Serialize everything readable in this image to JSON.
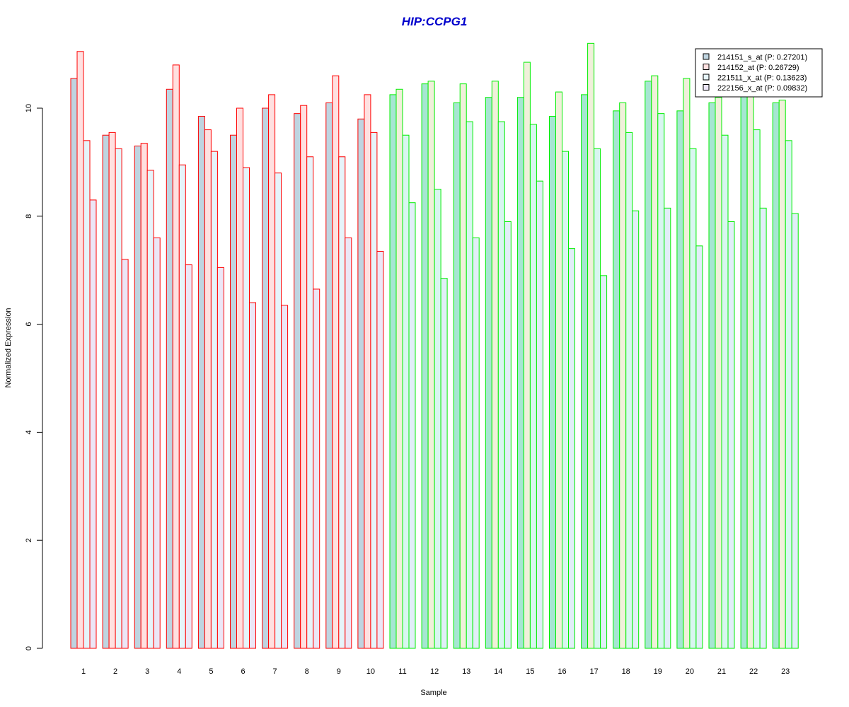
{
  "chart_data": {
    "type": "bar",
    "title": "HIP:CCPG1",
    "xlabel": "Sample",
    "ylabel": "Normalized Expression",
    "ylim": [
      0,
      11.2
    ],
    "yticks": [
      0,
      2,
      4,
      6,
      8,
      10
    ],
    "grid": false,
    "legend_position": "top-right",
    "categories": [
      "1",
      "2",
      "3",
      "4",
      "5",
      "6",
      "7",
      "8",
      "9",
      "10",
      "11",
      "12",
      "13",
      "14",
      "15",
      "16",
      "17",
      "18",
      "19",
      "20",
      "21",
      "22",
      "23"
    ],
    "group_colors": {
      "outline_group_a": "#ff0000",
      "outline_group_b": "#00ee00",
      "group_a_samples": 10
    },
    "series": [
      {
        "name": "214151_s_at (P: 0.27201)",
        "fill_a": "#bfd4e0",
        "fill_b": "#a6e6d2",
        "values": [
          10.55,
          9.5,
          9.3,
          10.35,
          9.85,
          9.5,
          10.0,
          9.9,
          10.1,
          9.8,
          10.25,
          10.45,
          10.1,
          10.2,
          10.2,
          9.85,
          10.25,
          9.95,
          10.5,
          9.95,
          10.1,
          10.3,
          10.1
        ]
      },
      {
        "name": "214152_at (P: 0.26729)",
        "fill_a": "#ffe0e0",
        "fill_b": "#f0f0da",
        "values": [
          11.05,
          9.55,
          9.35,
          10.8,
          9.6,
          10.0,
          10.25,
          10.05,
          10.6,
          10.25,
          10.35,
          10.5,
          10.45,
          10.5,
          10.85,
          10.3,
          11.2,
          10.1,
          10.6,
          10.55,
          10.2,
          10.3,
          10.15
        ]
      },
      {
        "name": "221511_x_at (P: 0.13623)",
        "fill_a": "#e6f4fa",
        "fill_b": "#d8f6f0",
        "values": [
          9.4,
          9.25,
          8.85,
          8.95,
          9.2,
          8.9,
          8.8,
          9.1,
          9.1,
          9.55,
          9.5,
          8.5,
          9.75,
          9.75,
          9.7,
          9.2,
          9.25,
          9.55,
          9.9,
          9.25,
          9.5,
          9.6,
          9.4
        ]
      },
      {
        "name": "222156_x_at (P: 0.09832)",
        "fill_a": "#ece6f6",
        "fill_b": "#e1eef8",
        "values": [
          8.3,
          7.2,
          7.6,
          7.1,
          7.05,
          6.4,
          6.35,
          6.65,
          7.6,
          7.35,
          8.25,
          6.85,
          7.6,
          7.9,
          8.65,
          7.4,
          6.9,
          8.1,
          8.15,
          7.45,
          7.9,
          8.15,
          8.05
        ]
      }
    ],
    "legend_fills": [
      "#bfd4e0",
      "#ffe0e0",
      "#e6f4fa",
      "#ece6f6"
    ],
    "title_color": "#0000cc"
  }
}
